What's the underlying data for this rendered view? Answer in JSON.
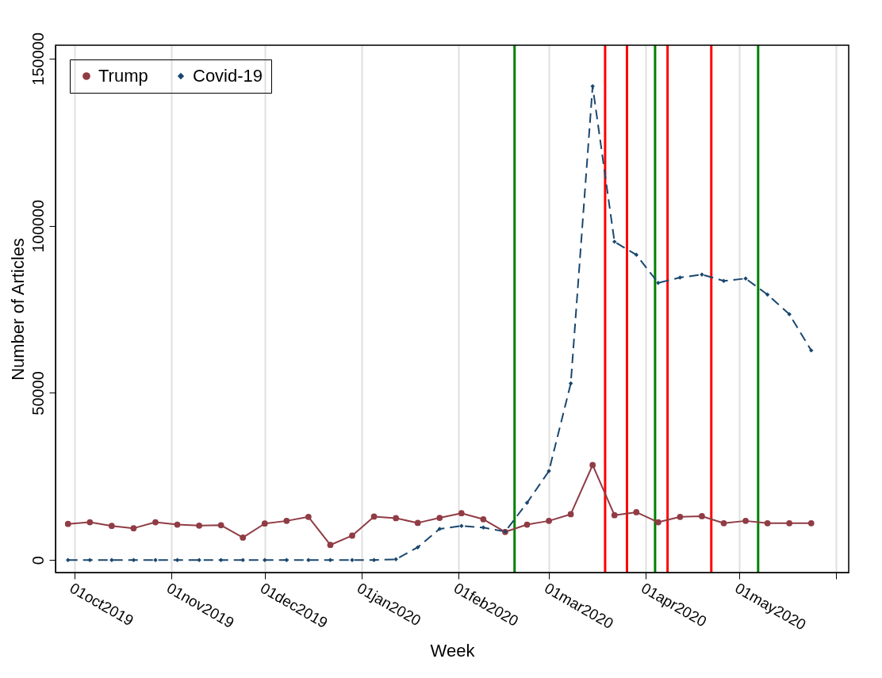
{
  "chart_data": {
    "type": "line",
    "xlabel": "Week",
    "ylabel": "Number of Articles",
    "x": [
      "2019-09-29",
      "2019-10-06",
      "2019-10-13",
      "2019-10-20",
      "2019-10-27",
      "2019-11-03",
      "2019-11-10",
      "2019-11-17",
      "2019-11-24",
      "2019-12-01",
      "2019-12-08",
      "2019-12-15",
      "2019-12-22",
      "2019-12-29",
      "2020-01-05",
      "2020-01-12",
      "2020-01-19",
      "2020-01-26",
      "2020-02-02",
      "2020-02-09",
      "2020-02-16",
      "2020-02-23",
      "2020-03-01",
      "2020-03-08",
      "2020-03-15",
      "2020-03-22",
      "2020-03-29",
      "2020-04-05",
      "2020-04-12",
      "2020-04-19",
      "2020-04-26",
      "2020-05-03",
      "2020-05-10",
      "2020-05-17",
      "2020-05-24"
    ],
    "series": [
      {
        "name": "Trump",
        "color": "#903c45",
        "marker": "circle",
        "line_style": "solid",
        "values": [
          10800,
          11300,
          10200,
          9500,
          11300,
          10600,
          10300,
          10400,
          6700,
          10900,
          11700,
          12900,
          4500,
          7300,
          13000,
          12500,
          11100,
          12600,
          14000,
          12200,
          8400,
          10600,
          11700,
          13700,
          28400,
          13400,
          14300,
          11300,
          12900,
          13100,
          11000,
          11700,
          11000,
          11000,
          11000
        ]
      },
      {
        "name": "Covid-19",
        "color": "#1a476f",
        "marker": "diamond",
        "line_style": "dashed",
        "values": [
          0,
          0,
          0,
          0,
          0,
          0,
          0,
          0,
          0,
          0,
          0,
          0,
          0,
          0,
          0,
          200,
          3800,
          9300,
          10200,
          9700,
          8500,
          17100,
          26600,
          52800,
          141700,
          95200,
          91300,
          82900,
          84500,
          85400,
          83500,
          84200,
          79400,
          73500,
          62700
        ]
      }
    ],
    "xlim": [
      "2019-09-25",
      "2020-06-05"
    ],
    "xticks": [
      {
        "value": "2019-10-01",
        "label": "01oct2019"
      },
      {
        "value": "2019-11-01",
        "label": "01nov2019"
      },
      {
        "value": "2019-12-01",
        "label": "01dec2019"
      },
      {
        "value": "2020-01-01",
        "label": "01jan2020"
      },
      {
        "value": "2020-02-01",
        "label": "01feb2020"
      },
      {
        "value": "2020-03-01",
        "label": "01mar2020"
      },
      {
        "value": "2020-04-01",
        "label": "01apr2020"
      },
      {
        "value": "2020-05-01",
        "label": "01may2020"
      },
      {
        "value": "2020-06-01",
        "label": null
      }
    ],
    "ylim": [
      -3750,
      154000
    ],
    "yticks": [
      0,
      50000,
      100000,
      150000
    ],
    "ref_lines": [
      {
        "axis": "x",
        "value": "2020-02-19",
        "color": "#008000"
      },
      {
        "axis": "x",
        "value": "2020-03-19",
        "color": "#ff0000"
      },
      {
        "axis": "x",
        "value": "2020-03-26",
        "color": "#ff0000"
      },
      {
        "axis": "x",
        "value": "2020-04-04",
        "color": "#008000"
      },
      {
        "axis": "x",
        "value": "2020-04-08",
        "color": "#ff0000"
      },
      {
        "axis": "x",
        "value": "2020-04-22",
        "color": "#ff0000"
      },
      {
        "axis": "x",
        "value": "2020-05-07",
        "color": "#008000"
      }
    ],
    "grid": "x",
    "legend": "top left"
  }
}
